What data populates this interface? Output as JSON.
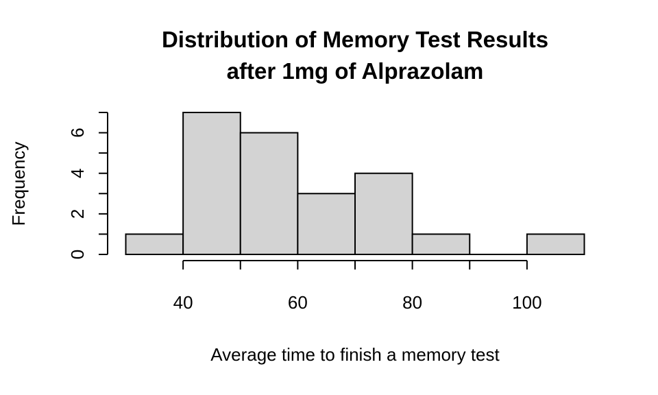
{
  "chart_data": {
    "type": "bar",
    "title_line1": "Distribution of Memory Test Results",
    "title_line2": "after 1mg of Alprazolam",
    "xlabel": "Average time to finish a memory test",
    "ylabel": "Frequency",
    "bins": [
      {
        "start": 30,
        "end": 40,
        "count": 1
      },
      {
        "start": 40,
        "end": 50,
        "count": 7
      },
      {
        "start": 50,
        "end": 60,
        "count": 6
      },
      {
        "start": 60,
        "end": 70,
        "count": 3
      },
      {
        "start": 70,
        "end": 80,
        "count": 4
      },
      {
        "start": 80,
        "end": 90,
        "count": 1
      },
      {
        "start": 90,
        "end": 100,
        "count": 0
      },
      {
        "start": 100,
        "end": 110,
        "count": 1
      }
    ],
    "xlim": [
      30,
      110
    ],
    "ylim": [
      0,
      7
    ],
    "x_ticks": [
      40,
      60,
      80,
      100
    ],
    "x_ticks_minor": [
      50,
      70,
      90
    ],
    "y_ticks": [
      0,
      2,
      4,
      6
    ],
    "y_ticks_minor": [
      1,
      3,
      5,
      7
    ],
    "bar_color": "#d3d3d3",
    "grid": false,
    "legend": "none"
  }
}
